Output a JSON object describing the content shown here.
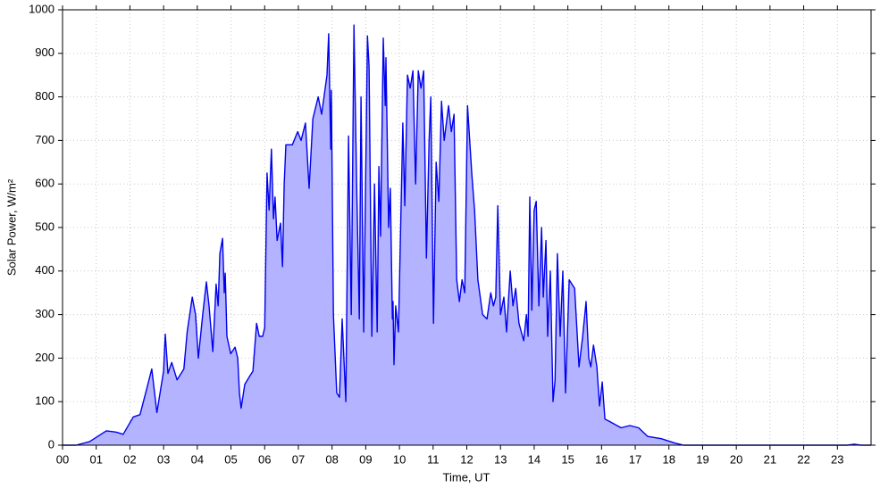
{
  "chart_data": {
    "type": "area",
    "x_label": "Time, UT",
    "y_label": "Solar Power, W/m²",
    "color": "#0000ee",
    "fill_color": "#b3b3ff",
    "grid": true,
    "xlim": [
      0,
      24
    ],
    "ylim": [
      0,
      1000
    ],
    "xticks": [
      {
        "value": 0,
        "label": "00"
      },
      {
        "value": 1,
        "label": "01"
      },
      {
        "value": 2,
        "label": "02"
      },
      {
        "value": 3,
        "label": "03"
      },
      {
        "value": 4,
        "label": "04"
      },
      {
        "value": 5,
        "label": "05"
      },
      {
        "value": 6,
        "label": "06"
      },
      {
        "value": 7,
        "label": "07"
      },
      {
        "value": 8,
        "label": "08"
      },
      {
        "value": 9,
        "label": "09"
      },
      10,
      11,
      12,
      13,
      14,
      15,
      16,
      17,
      18,
      19,
      20,
      21,
      22,
      23
    ],
    "yticks": [
      0,
      100,
      200,
      300,
      400,
      500,
      600,
      700,
      800,
      900,
      1000
    ],
    "x": [
      0,
      0.4,
      0.8,
      1.3,
      1.6,
      1.8,
      2.1,
      2.3,
      2.5,
      2.65,
      2.8,
      3.0,
      3.05,
      3.13,
      3.24,
      3.4,
      3.6,
      3.7,
      3.85,
      3.95,
      4.03,
      4.16,
      4.27,
      4.35,
      4.46,
      4.56,
      4.62,
      4.67,
      4.75,
      4.8,
      4.83,
      4.88,
      4.99,
      5.12,
      5.2,
      5.25,
      5.3,
      5.41,
      5.57,
      5.65,
      5.76,
      5.84,
      5.94,
      6.0,
      6.07,
      6.13,
      6.2,
      6.26,
      6.31,
      6.37,
      6.47,
      6.53,
      6.58,
      6.63,
      6.82,
      6.98,
      7.08,
      7.21,
      7.32,
      7.43,
      7.59,
      7.69,
      7.85,
      7.9,
      7.96,
      7.98,
      8.04,
      8.14,
      8.22,
      8.3,
      8.41,
      8.49,
      8.57,
      8.65,
      8.73,
      8.81,
      8.86,
      8.94,
      9.05,
      9.1,
      9.18,
      9.26,
      9.34,
      9.39,
      9.44,
      9.52,
      9.58,
      9.6,
      9.68,
      9.73,
      9.79,
      9.81,
      9.84,
      9.89,
      9.97,
      10.1,
      10.16,
      10.24,
      10.32,
      10.4,
      10.48,
      10.56,
      10.64,
      10.72,
      10.8,
      10.88,
      10.93,
      11.01,
      11.09,
      11.17,
      11.25,
      11.33,
      11.46,
      11.54,
      11.62,
      11.7,
      11.78,
      11.86,
      11.94,
      12.02,
      12.15,
      12.23,
      12.33,
      12.47,
      12.6,
      12.71,
      12.79,
      12.86,
      12.92,
      13.0,
      13.1,
      13.18,
      13.29,
      13.37,
      13.45,
      13.55,
      13.69,
      13.77,
      13.82,
      13.87,
      13.93,
      14.0,
      14.06,
      14.14,
      14.22,
      14.27,
      14.35,
      14.4,
      14.48,
      14.56,
      14.62,
      14.69,
      14.77,
      14.85,
      14.93,
      15.04,
      15.2,
      15.33,
      15.44,
      15.54,
      15.62,
      15.68,
      15.76,
      15.86,
      15.94,
      16.02,
      16.1,
      16.23,
      16.58,
      16.84,
      17.1,
      17.37,
      17.77,
      18.17,
      18.43,
      23.3,
      23.5,
      23.7,
      24
    ],
    "values": [
      0,
      0,
      8,
      33,
      30,
      25,
      65,
      70,
      130,
      175,
      75,
      170,
      255,
      165,
      190,
      150,
      175,
      260,
      340,
      300,
      200,
      300,
      375,
      320,
      215,
      370,
      320,
      440,
      475,
      350,
      395,
      250,
      210,
      225,
      200,
      120,
      85,
      140,
      160,
      170,
      280,
      250,
      250,
      270,
      625,
      540,
      680,
      520,
      570,
      470,
      510,
      410,
      600,
      690,
      690,
      720,
      700,
      740,
      590,
      750,
      800,
      760,
      850,
      945,
      680,
      815,
      300,
      120,
      110,
      290,
      100,
      710,
      300,
      965,
      600,
      290,
      800,
      260,
      940,
      870,
      250,
      600,
      260,
      640,
      480,
      935,
      780,
      890,
      500,
      590,
      290,
      330,
      185,
      320,
      260,
      740,
      550,
      850,
      820,
      860,
      600,
      860,
      820,
      860,
      430,
      700,
      800,
      280,
      650,
      560,
      790,
      700,
      780,
      720,
      760,
      380,
      330,
      380,
      350,
      780,
      620,
      540,
      380,
      300,
      290,
      350,
      320,
      340,
      550,
      300,
      340,
      260,
      400,
      320,
      360,
      280,
      240,
      300,
      250,
      570,
      310,
      540,
      560,
      320,
      500,
      340,
      470,
      250,
      400,
      100,
      150,
      440,
      250,
      400,
      120,
      380,
      360,
      180,
      250,
      330,
      200,
      180,
      230,
      180,
      90,
      145,
      60,
      55,
      40,
      45,
      40,
      20,
      15,
      5,
      0,
      0,
      2,
      0,
      0
    ]
  }
}
